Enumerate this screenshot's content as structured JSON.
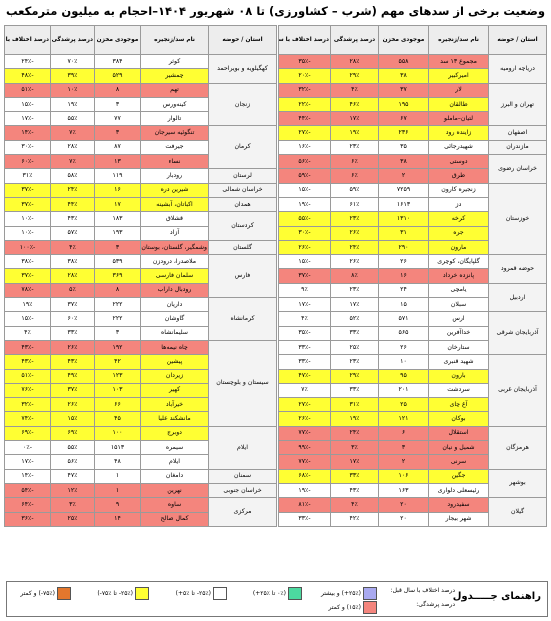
{
  "title": "وضعیت برخی از سدهای مهم (شرب – کشاورزی) تا ۰۸ شهریور ۱۴۰۴–احجام به میلیون مترمکعب",
  "headers": {
    "province": "استان / حوضه",
    "dam": "نام سد/زنجیره",
    "storage": "موجودی مخزن",
    "fill": "درصد پرشدگی",
    "diff": "درصد اختلاف با سال قبل"
  },
  "right_rows": [
    {
      "p": "دریاچه ارومیه",
      "n": "مجموع ۱۳ سد",
      "s": "۵۵۸",
      "f": "۲۸٪",
      "d": "-۳۵٪",
      "c": "red"
    },
    {
      "p": "",
      "n": "امیرکبیر",
      "s": "۳۸",
      "f": "۲۹٪",
      "d": "-۲۰٪",
      "c": "yel"
    },
    {
      "p": "تهران و البرز",
      "n": "لار",
      "s": "۳۷",
      "f": "۴٪",
      "d": "-۳۲٪",
      "c": "red"
    },
    {
      "p": "",
      "n": "طالقان",
      "s": "۱۹۵",
      "f": "۴۶٪",
      "d": "-۲۲٪",
      "c": "yel"
    },
    {
      "p": "",
      "n": "لتیان–ماملو",
      "s": "۶۷",
      "f": "۱۷٪",
      "d": "-۴۴٪",
      "c": "red"
    },
    {
      "p": "اصفهان",
      "n": "زاینده رود",
      "s": "۲۳۶",
      "f": "۱۹٪",
      "d": "-۲۷٪",
      "c": "yel"
    },
    {
      "p": "مازندران",
      "n": "شهیدرجائی",
      "s": "۳۵",
      "f": "۲۳٪",
      "d": "-۱۶٪",
      "c": "gry"
    },
    {
      "p": "خراسان رضوی",
      "n": "دوستی",
      "s": "۳۸",
      "f": "۶٪",
      "d": "-۵۶٪",
      "c": "red"
    },
    {
      "p": "",
      "n": "طرق",
      "s": "۲",
      "f": "۶٪",
      "d": "-۵۹٪",
      "c": "red"
    },
    {
      "p": "خوزستان",
      "n": "زنجیره کارون",
      "s": "۷۲۵۹",
      "f": "۵۹٪",
      "d": "-۱۵٪",
      "c": "gry"
    },
    {
      "p": "",
      "n": "دز",
      "s": "۱۶۱۳",
      "f": "۶۱٪",
      "d": "-۱۹٪",
      "c": "gry"
    },
    {
      "p": "",
      "n": "کرخه",
      "s": "۱۳۱۰",
      "f": "۲۳٪",
      "d": "-۵۵٪",
      "c": "yel"
    },
    {
      "p": "",
      "n": "جره",
      "s": "۳۱",
      "f": "۲۶٪",
      "d": "-۳۰٪",
      "c": "yel"
    },
    {
      "p": "",
      "n": "مارون",
      "s": "۲۹۰",
      "f": "۲۴٪",
      "d": "-۲۶٪",
      "c": "yel"
    },
    {
      "p": "حوضه قمرود",
      "n": "گلپایگان، کوچری",
      "s": "۲۶",
      "f": "۲۶٪",
      "d": "-۱۵٪",
      "c": "gry"
    },
    {
      "p": "",
      "n": "پانزده خرداد",
      "s": "۱۶",
      "f": "۸٪",
      "d": "-۳۷٪",
      "c": "red"
    },
    {
      "p": "اردبیل",
      "n": "یامچی",
      "s": "۲۴",
      "f": "۲۳٪",
      "d": "۹٪",
      "c": "gry"
    },
    {
      "p": "",
      "n": "سبلان",
      "s": "۱۵",
      "f": "۱۷٪",
      "d": "-۱۷٪",
      "c": "gry"
    },
    {
      "p": "آذربایجان شرقی",
      "n": "ارس",
      "s": "۵۷۱",
      "f": "۵۲٪",
      "d": "۴٪",
      "c": "gry"
    },
    {
      "p": "",
      "n": "خداآفرین",
      "s": "۵۶۵",
      "f": "۳۳٪",
      "d": "-۳۵٪",
      "c": "gry"
    },
    {
      "p": "",
      "n": "ستارخان",
      "s": "۲۶",
      "f": "۲۵٪",
      "d": "-۳۳٪",
      "c": "gry"
    },
    {
      "p": "آذربایجان غربی",
      "n": "شهید قنبری",
      "s": "۱۰",
      "f": "۲۳٪",
      "d": "-۳۳٪",
      "c": "gry"
    },
    {
      "p": "",
      "n": "بارون",
      "s": "۹۵",
      "f": "۲۹٪",
      "d": "-۴۷٪",
      "c": "yel"
    },
    {
      "p": "",
      "n": "سردشت",
      "s": "۲۰۱",
      "f": "۳۳٪",
      "d": "۷٪",
      "c": "gry"
    },
    {
      "p": "",
      "n": "آغ چای",
      "s": "۲۵",
      "f": "۳۱٪",
      "d": "-۲۷٪",
      "c": "yel"
    },
    {
      "p": "",
      "n": "بوکان",
      "s": "۱۲۱",
      "f": "۱۹٪",
      "d": "-۲۶٪",
      "c": "yel"
    },
    {
      "p": "هرمزگان",
      "n": "استقلال",
      "s": "۶",
      "f": "۲۴٪",
      "d": "-۷۷٪",
      "c": "red"
    },
    {
      "p": "",
      "n": "شمیل و نیان",
      "s": "۳",
      "f": "۳٪",
      "d": "-۹۹٪",
      "c": "red"
    },
    {
      "p": "",
      "n": "سرنی",
      "s": "۲",
      "f": "۱۷٪",
      "d": "-۷۷٪",
      "c": "red"
    },
    {
      "p": "بوشهر",
      "n": "جگین",
      "s": "۱۰۶",
      "f": "۳۳٪",
      "d": "-۶۸٪",
      "c": "yel"
    },
    {
      "p": "",
      "n": "رئیسعلی دلواری",
      "s": "۱۶۳",
      "f": "۴۳٪",
      "d": "-۱۹٪",
      "c": "gry"
    },
    {
      "p": "گیلان",
      "n": "سفیدرود",
      "s": "۲۰",
      "f": "۴٪",
      "d": "-۸۱٪",
      "c": "red"
    },
    {
      "p": "",
      "n": "شهر بیجار",
      "s": "۲۰",
      "f": "۴۲٪",
      "d": "-۳۳٪",
      "c": "gry"
    }
  ],
  "right_spans": [
    2,
    0,
    3,
    0,
    0,
    1,
    1,
    2,
    0,
    5,
    0,
    0,
    0,
    0,
    2,
    0,
    2,
    0,
    3,
    0,
    0,
    5,
    0,
    0,
    0,
    0,
    3,
    0,
    0,
    2,
    0,
    2,
    0
  ],
  "left_rows": [
    {
      "p": "کهگیلویه و بویراحمد",
      "n": "کوثر",
      "s": "۳۸۴",
      "f": "۷۰٪",
      "d": "-۲۴٪",
      "c": "gry"
    },
    {
      "p": "",
      "n": "چمشیر",
      "s": "۵۲۹",
      "f": "۳۹٪",
      "d": "-۴۸٪",
      "c": "yel"
    },
    {
      "p": "زنجان",
      "n": "تهم",
      "s": "۸",
      "f": "۱۰٪",
      "d": "-۵۱٪",
      "c": "red"
    },
    {
      "p": "",
      "n": "کینه‌ورس",
      "s": "۳",
      "f": "۱۹٪",
      "d": "-۱۵٪",
      "c": "gry"
    },
    {
      "p": "",
      "n": "تالوار",
      "s": "۷۷",
      "f": "۵۵٪",
      "d": "-۱۷٪",
      "c": "gry"
    },
    {
      "p": "کرمان",
      "n": "تنگوئیه سیرجان",
      "s": "۳",
      "f": "۷٪",
      "d": "-۱۴٪",
      "c": "red"
    },
    {
      "p": "",
      "n": "جیرفت",
      "s": "۸۷",
      "f": "۲۸٪",
      "d": "-۳۰٪",
      "c": "gry"
    },
    {
      "p": "",
      "n": "نساء",
      "s": "۱۳",
      "f": "۷٪",
      "d": "-۶۰٪",
      "c": "red"
    },
    {
      "p": "لرستان",
      "n": "رودبار",
      "s": "۱۱۹",
      "f": "۵۸٪",
      "d": "۳۱٪",
      "c": "gry"
    },
    {
      "p": "خراسان شمالی",
      "n": "شیرین دره",
      "s": "۱۶",
      "f": "۲۴٪",
      "d": "-۳۷٪",
      "c": "yel"
    },
    {
      "p": "همدان",
      "n": "اکباتان، آبشینه",
      "s": "۱۷",
      "f": "۴۴٪",
      "d": "-۳۷٪",
      "c": "yel"
    },
    {
      "p": "کردستان",
      "n": "قشلاق",
      "s": "۱۸۳",
      "f": "۴۳٪",
      "d": "-۱۰٪",
      "c": "gry"
    },
    {
      "p": "",
      "n": "آزاد",
      "s": "۱۹۳",
      "f": "۵۷٪",
      "d": "-۱۰٪",
      "c": "gry"
    },
    {
      "p": "گلستان",
      "n": "وشمگیر، گلستان، بوستان",
      "s": "۳",
      "f": "۴٪",
      "d": "-۱۰۰٪",
      "c": "red"
    },
    {
      "p": "فارس",
      "n": "ملاصدرا، درودزن",
      "s": "۵۳۹",
      "f": "۳۸٪",
      "d": "-۳۸٪",
      "c": "gry"
    },
    {
      "p": "",
      "n": "سلمان فارسی",
      "s": "۳۶۹",
      "f": "۲۸٪",
      "d": "-۳۷٪",
      "c": "yel"
    },
    {
      "p": "",
      "n": "رودبال داراب",
      "s": "۸",
      "f": "۵٪",
      "d": "-۷۸٪",
      "c": "red"
    },
    {
      "p": "کرمانشاه",
      "n": "داریان",
      "s": "۲۲۲",
      "f": "۳۷٪",
      "d": "۱۹٪",
      "c": "gry"
    },
    {
      "p": "",
      "n": "گاوشان",
      "s": "۲۲۲",
      "f": "۶۰٪",
      "d": "-۱۵٪",
      "c": "gry"
    },
    {
      "p": "",
      "n": "سلیمانشاه",
      "s": "۳",
      "f": "۳۳٪",
      "d": "۴٪",
      "c": "gry"
    },
    {
      "p": "سیستان و بلوچستان",
      "n": "چاه نیمه‌ها",
      "s": "۱۹۲",
      "f": "۲۶٪",
      "d": "-۴۳٪",
      "c": "red"
    },
    {
      "p": "",
      "n": "پیشین",
      "s": "۴۲",
      "f": "۴۳٪",
      "d": "-۴۳٪",
      "c": "yel"
    },
    {
      "p": "",
      "n": "زیردان",
      "s": "۱۲۳",
      "f": "۴۹٪",
      "d": "-۵۱٪",
      "c": "yel"
    },
    {
      "p": "",
      "n": "کهیر",
      "s": "۱۰۳",
      "f": "۳۷٪",
      "d": "-۷۶٪",
      "c": "yel"
    },
    {
      "p": "",
      "n": "خیرآباد",
      "s": "۶۶",
      "f": "۲۶٪",
      "d": "-۳۲٪",
      "c": "yel"
    },
    {
      "p": "",
      "n": "مانشکند علیا",
      "s": "۴۵",
      "f": "۱۵٪",
      "d": "-۷۴٪",
      "c": "yel"
    },
    {
      "p": "ایلام",
      "n": "دوبرج",
      "s": "۱۰۰",
      "f": "۶۹٪",
      "d": "-۶۹٪",
      "c": "yel"
    },
    {
      "p": "",
      "n": "سیمره",
      "s": "۱۵۱۳",
      "f": "۵۵٪",
      "d": "-۰٪",
      "c": "gry"
    },
    {
      "p": "",
      "n": "ایلام",
      "s": "۴۸",
      "f": "۵۶٪",
      "d": "-۱۷٪",
      "c": "gry"
    },
    {
      "p": "سمنان",
      "n": "دامغان",
      "s": "۱",
      "f": "۴۷٪",
      "d": "-۱۴٪",
      "c": "gry"
    },
    {
      "p": "خراسان جنوبی",
      "n": "نهرین",
      "s": "۱",
      "f": "۱۲٪",
      "d": "-۵۴٪",
      "c": "red"
    },
    {
      "p": "مرکزی",
      "n": "ساوه",
      "s": "۹",
      "f": "۳٪",
      "d": "-۶۴٪",
      "c": "red"
    },
    {
      "p": "",
      "n": "کمال صالح",
      "s": "۱۴",
      "f": "۲۵٪",
      "d": "-۳۶٪",
      "c": "red"
    }
  ],
  "left_spans": [
    2,
    0,
    3,
    0,
    0,
    3,
    0,
    0,
    1,
    1,
    1,
    2,
    0,
    1,
    3,
    0,
    0,
    3,
    0,
    0,
    6,
    0,
    0,
    0,
    0,
    0,
    3,
    0,
    0,
    1,
    1,
    2,
    0
  ],
  "legend": {
    "title": "راهنمای جـــــدول",
    "diff_label": "درصد اختلاف با سال قبل:",
    "fill_label": "درصد پرشدگی:",
    "items": [
      {
        "text": "(‎+۲۵٪) و بیشتر",
        "c": "lav"
      },
      {
        "text": "(۰٪ تا ‎+۲۵٪)",
        "c": "grn"
      },
      {
        "text": "(‎-۲۵٪ تا ‎+۵٪)",
        "c": "gry"
      },
      {
        "text": "(‎-۲۵٪ تا ‎-۷۵٪)",
        "c": "yel"
      },
      {
        "text": "(‎-۷۵٪) و کمتر",
        "c": "org"
      },
      {
        "text": "(۱۵٪) و کمتر",
        "c": "red"
      }
    ]
  }
}
